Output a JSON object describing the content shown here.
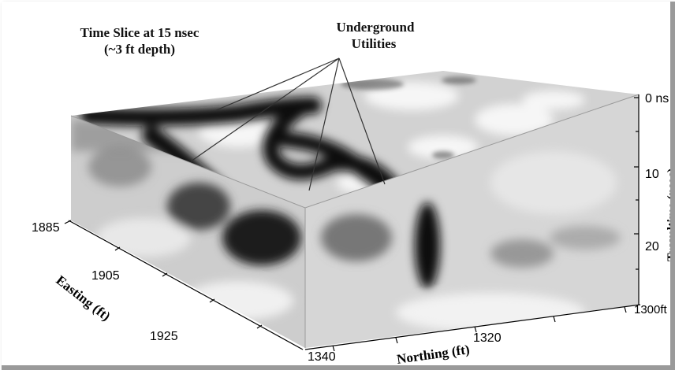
{
  "annotations": {
    "title_line1": "Time Slice at 15 nsec",
    "title_line2": "(~3 ft depth)",
    "callout_line1": "Underground",
    "callout_line2": "Utilities"
  },
  "axes": {
    "traveltime": {
      "label": "Traveltime (nsec)",
      "ticks": [
        "0 ns",
        "10",
        "20"
      ]
    },
    "easting": {
      "label": "Easting (ft)",
      "ticks": [
        "1885",
        "1905",
        "1925"
      ]
    },
    "northing": {
      "label": "Northing (ft)",
      "ticks": [
        "1340",
        "1320",
        "1300ft"
      ]
    }
  },
  "colors": {
    "background": "#ffffff",
    "cube_light": "#d8d8d8",
    "anomaly_dark": "#111111"
  }
}
